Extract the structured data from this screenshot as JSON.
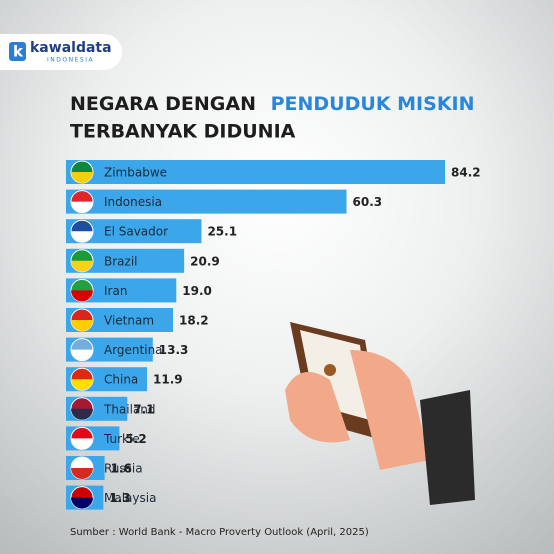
{
  "logo": {
    "name": "kawaldata",
    "sub": "INDONESIA"
  },
  "chart_data": {
    "type": "bar",
    "orientation": "horizontal",
    "title": [
      "NEGARA DENGAN",
      "PENDUDUK MISKIN",
      "TERBANYAK DIDUNIA"
    ],
    "categories": [
      "Zimbabwe",
      "Indonesia",
      "El Savador",
      "Brazil",
      "Iran",
      "Vietnam",
      "Argentina",
      "China",
      "Thailand",
      "Turkie",
      "Russia",
      "Malaysia"
    ],
    "values": [
      84.2,
      60.3,
      25.1,
      20.9,
      19.0,
      18.2,
      13.3,
      11.9,
      7.1,
      5.2,
      1.6,
      1.3
    ],
    "value_labels": [
      "84.2",
      "60.3",
      "25.1",
      "20.9",
      "19.0",
      "18.2",
      "13.3",
      "11.9",
      "7.1",
      "5.2",
      "1.6",
      "1.3"
    ],
    "color": "#3ba7ea",
    "source": "Sumber : World Bank - Macro Proverty Outlook (April, 2025)"
  }
}
